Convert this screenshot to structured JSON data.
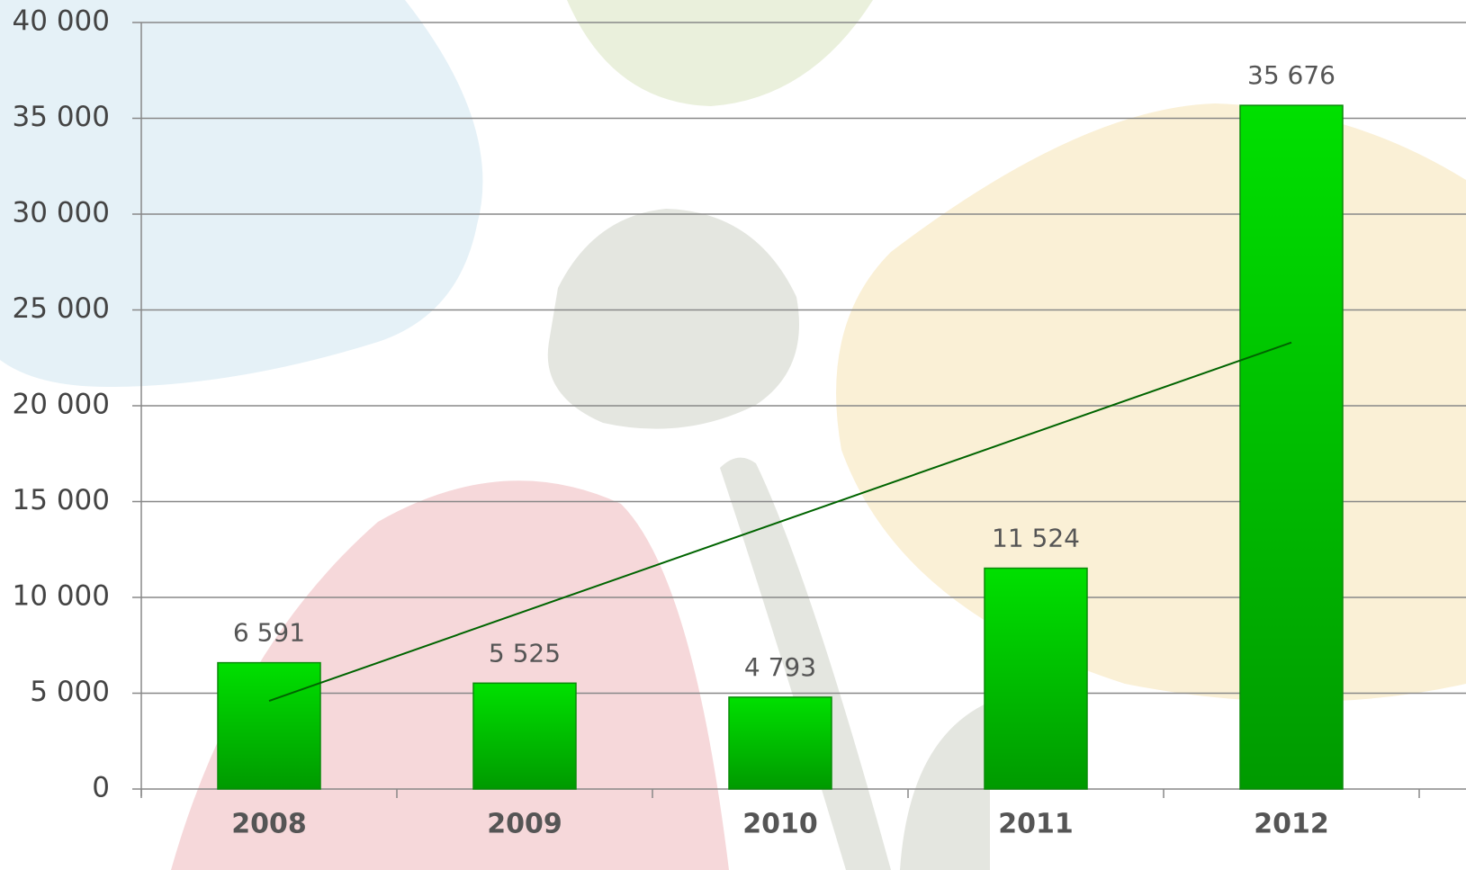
{
  "chart_data": {
    "type": "bar",
    "categories": [
      "2008",
      "2009",
      "2010",
      "2011",
      "2012"
    ],
    "values": [
      6591,
      5525,
      4793,
      11524,
      35676
    ],
    "value_labels": [
      "6 591",
      "5 525",
      "4 793",
      "11 524",
      "35 676"
    ],
    "color": "#00c800",
    "ylim": [
      0,
      40000
    ],
    "yticks": [
      {
        "value": 0,
        "label": "0"
      },
      {
        "value": 5000,
        "label": "5 000"
      },
      {
        "value": 10000,
        "label": "10 000"
      },
      {
        "value": 15000,
        "label": "15 000"
      },
      {
        "value": 20000,
        "label": "20 000"
      },
      {
        "value": 25000,
        "label": "25 000"
      },
      {
        "value": 30000,
        "label": "30 000"
      },
      {
        "value": 35000,
        "label": "35 000"
      },
      {
        "value": 40000,
        "label": "40 000"
      }
    ],
    "grid": true,
    "trendline": {
      "color": "#006400",
      "values": [
        4600,
        23300
      ]
    }
  }
}
